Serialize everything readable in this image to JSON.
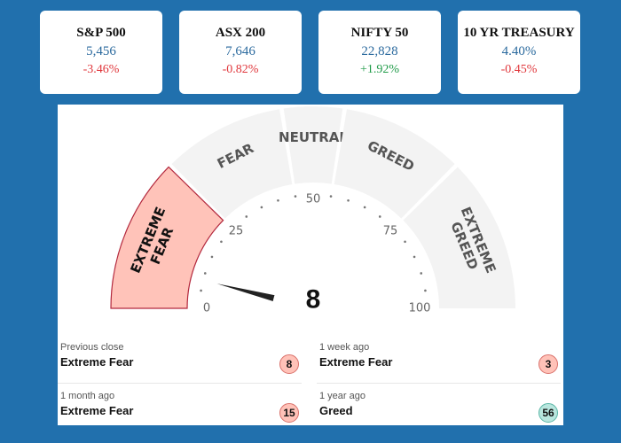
{
  "tickers": [
    {
      "name": "S&P 500",
      "value": "5,456",
      "change": "-3.46%",
      "direction": "down"
    },
    {
      "name": "ASX 200",
      "value": "7,646",
      "change": "-0.82%",
      "direction": "down"
    },
    {
      "name": "NIFTY 50",
      "value": "22,828",
      "change": "+1.92%",
      "direction": "up"
    },
    {
      "name": "10 YR TREASURY",
      "value": "4.40%",
      "change": "-0.45%",
      "direction": "down"
    }
  ],
  "gauge": {
    "value": "8",
    "reading": 8,
    "segments": [
      "EXTREME FEAR",
      "FEAR",
      "NEUTRAL",
      "GREED",
      "EXTREME GREED"
    ],
    "active_segment": "EXTREME FEAR",
    "scale_labels": [
      "0",
      "25",
      "50",
      "75",
      "100"
    ],
    "colors": {
      "active_fill": "#ffc3b9",
      "active_stroke": "#b3283d",
      "inactive_fill": "#f3f3f3"
    }
  },
  "history": [
    {
      "label": "Previous close",
      "value": "Extreme Fear",
      "score": "8",
      "sentiment": "fear"
    },
    {
      "label": "1 week ago",
      "value": "Extreme Fear",
      "score": "3",
      "sentiment": "fear"
    },
    {
      "label": "1 month ago",
      "value": "Extreme Fear",
      "score": "15",
      "sentiment": "fear"
    },
    {
      "label": "1 year ago",
      "value": "Greed",
      "score": "56",
      "sentiment": "greed"
    }
  ]
}
